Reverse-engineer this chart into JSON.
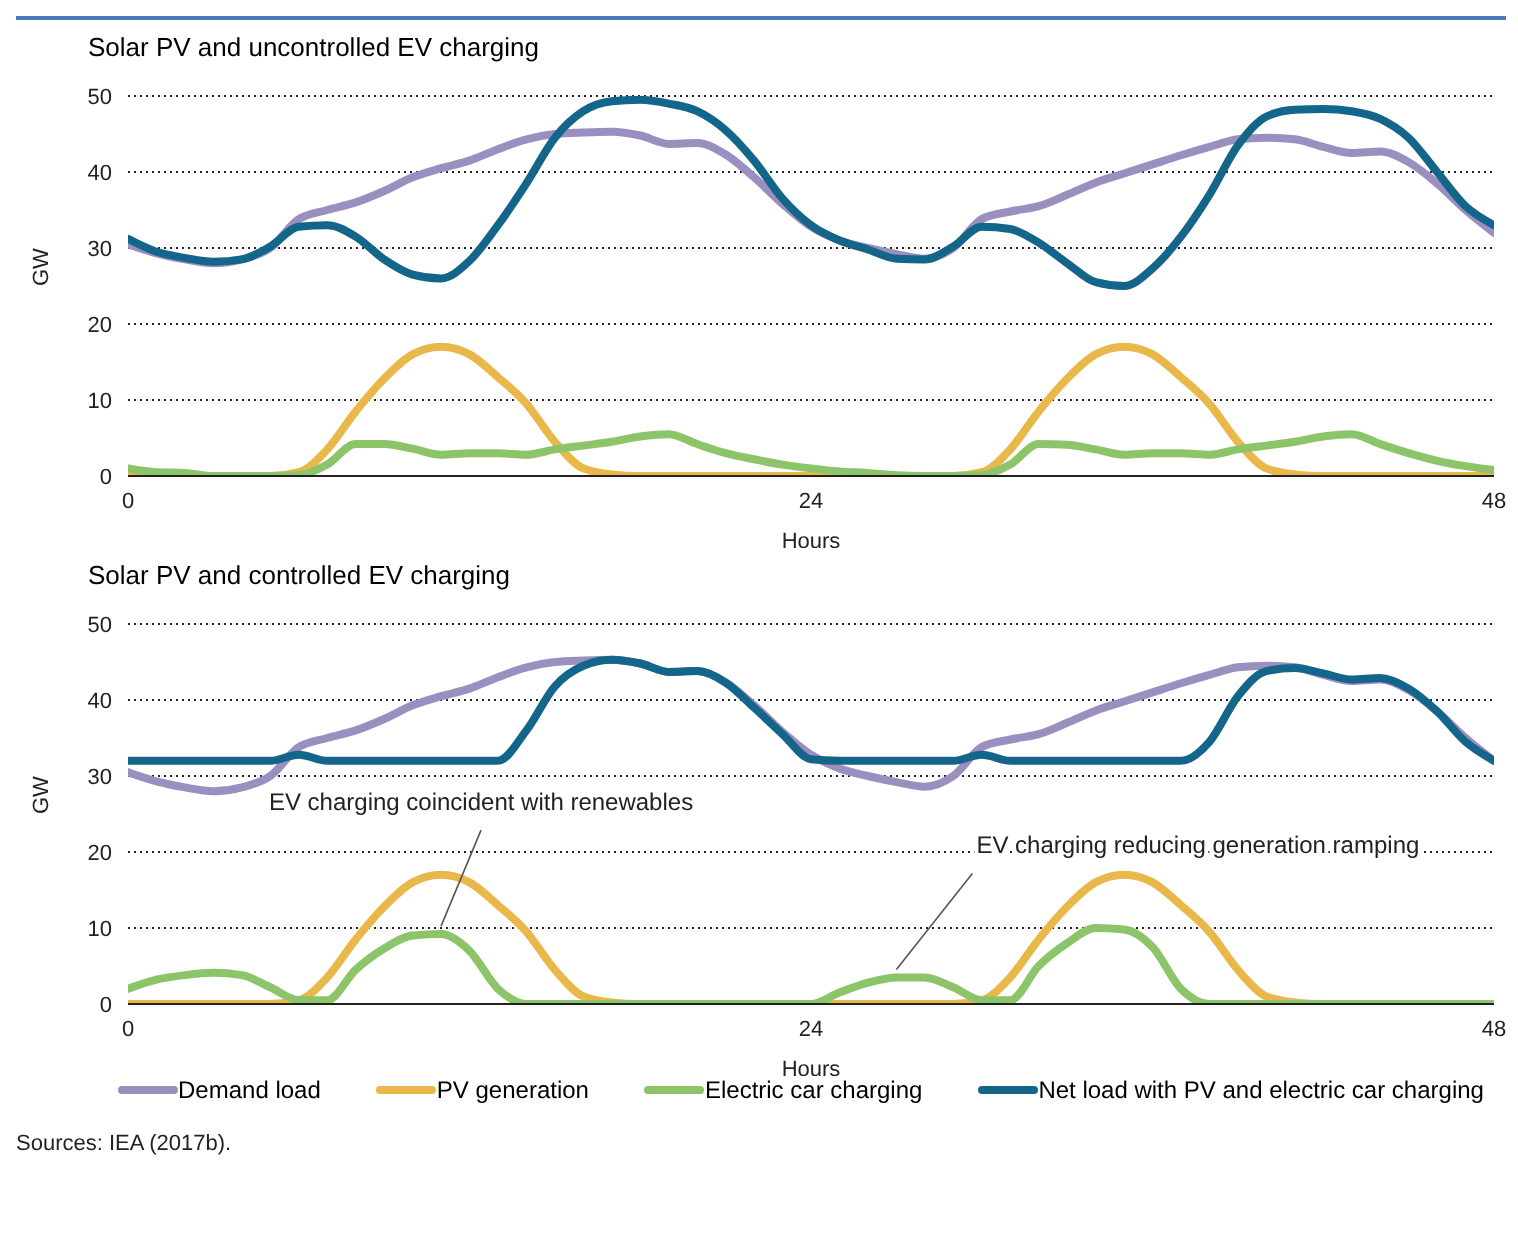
{
  "chart_data": [
    {
      "type": "line",
      "title": "Solar PV and uncontrolled EV charging",
      "xlabel": "Hours",
      "ylabel": "GW",
      "x": [
        0,
        1,
        2,
        3,
        4,
        5,
        6,
        7,
        8,
        9,
        10,
        11,
        12,
        13,
        14,
        15,
        16,
        17,
        18,
        19,
        20,
        21,
        22,
        23,
        24,
        25,
        26,
        27,
        28,
        29,
        30,
        31,
        32,
        33,
        34,
        35,
        36,
        37,
        38,
        39,
        40,
        41,
        42,
        43,
        44,
        45,
        46,
        47,
        48
      ],
      "xlim": [
        0,
        48
      ],
      "xticks": [
        0,
        24,
        48
      ],
      "ylim": [
        0,
        50
      ],
      "yticks": [
        0,
        10,
        20,
        30,
        40,
        50
      ],
      "grid": "y",
      "legend": false,
      "marker": "none",
      "line_style": "solid",
      "series": [
        {
          "color": "#9b8fc0",
          "values": [
            30.5,
            29.3,
            28.5,
            28,
            28.5,
            30,
            33.8,
            35,
            36,
            37.5,
            39.3,
            40.5,
            41.5,
            43,
            44.3,
            45,
            45.2,
            45.3,
            44.8,
            43.7,
            43.8,
            42.3,
            39.3,
            35.8,
            32.8,
            31,
            30,
            29.2,
            28.6,
            30,
            33.8,
            34.8,
            35.5,
            37,
            38.6,
            39.8,
            41,
            42.2,
            43.3,
            44.3,
            44.5,
            44.3,
            43.3,
            42.5,
            42.7,
            41.3,
            38.5,
            35,
            32
          ]
        },
        {
          "color": "#e8b84a",
          "values": [
            0,
            0,
            0,
            0,
            0,
            0,
            0.5,
            3.5,
            8.5,
            12.8,
            16,
            17,
            16,
            13,
            9.5,
            4.5,
            1,
            0.2,
            0,
            0,
            0,
            0,
            0,
            0,
            0,
            0,
            0,
            0,
            0,
            0,
            0.5,
            3.5,
            8.5,
            12.8,
            16,
            17,
            16,
            13,
            9.5,
            4.5,
            1,
            0.2,
            0,
            0,
            0,
            0,
            0,
            0,
            0
          ]
        },
        {
          "color": "#8cc46a",
          "values": [
            1,
            0.5,
            0.4,
            0,
            0,
            0,
            0.1,
            1.5,
            4.2,
            4.2,
            3.6,
            2.8,
            3,
            3,
            2.8,
            3.5,
            4,
            4.5,
            5.2,
            5.5,
            4.2,
            3,
            2.2,
            1.5,
            1,
            0.6,
            0.4,
            0.1,
            0,
            0,
            0.1,
            1.5,
            4.2,
            4.1,
            3.5,
            2.8,
            3,
            3,
            2.8,
            3.5,
            4,
            4.5,
            5.2,
            5.5,
            4.2,
            3,
            2,
            1.3,
            0.8
          ]
        },
        {
          "color": "#14658a",
          "values": [
            31.2,
            29.5,
            28.7,
            28.2,
            28.5,
            30.2,
            32.8,
            33,
            31.5,
            28.5,
            26.5,
            26,
            28.3,
            33,
            38.5,
            44.5,
            48,
            49.3,
            49.5,
            49,
            48,
            45.5,
            41.5,
            36.5,
            33,
            31,
            29.8,
            28.6,
            28.5,
            30.2,
            32.8,
            32.5,
            30.7,
            28,
            25.5,
            25,
            27.3,
            31.5,
            37,
            43.5,
            47.3,
            48.2,
            48.3,
            48,
            47,
            44.5,
            40,
            35.5,
            33
          ]
        }
      ]
    },
    {
      "type": "line",
      "title": "Solar PV and controlled EV charging",
      "xlabel": "Hours",
      "ylabel": "GW",
      "x": [
        0,
        1,
        2,
        3,
        4,
        5,
        6,
        7,
        8,
        9,
        10,
        11,
        12,
        13,
        14,
        15,
        16,
        17,
        18,
        19,
        20,
        21,
        22,
        23,
        24,
        25,
        26,
        27,
        28,
        29,
        30,
        31,
        32,
        33,
        34,
        35,
        36,
        37,
        38,
        39,
        40,
        41,
        42,
        43,
        44,
        45,
        46,
        47,
        48
      ],
      "xlim": [
        0,
        48
      ],
      "xticks": [
        0,
        24,
        48
      ],
      "ylim": [
        0,
        50
      ],
      "yticks": [
        0,
        10,
        20,
        30,
        40,
        50
      ],
      "grid": "y",
      "legend": "bottom",
      "marker": "none",
      "line_style": "solid",
      "annotations": [
        {
          "text": "EV charging coincident with renewables",
          "x": 11,
          "y": 9.2
        },
        {
          "text": "EV charging reducing generation ramping",
          "x": 27,
          "y": 3.5
        },
        "Sources: IEA (2017b)."
      ],
      "series": [
        {
          "name": "Demand load",
          "color": "#9b8fc0",
          "values": [
            30.5,
            29.3,
            28.5,
            28,
            28.5,
            30,
            33.8,
            35,
            36,
            37.5,
            39.3,
            40.5,
            41.5,
            43,
            44.3,
            45,
            45.2,
            45.3,
            44.8,
            43.7,
            43.8,
            42.3,
            39.3,
            35.8,
            32.8,
            31,
            30,
            29.2,
            28.6,
            30,
            33.8,
            34.8,
            35.5,
            37,
            38.6,
            39.8,
            41,
            42.2,
            43.3,
            44.3,
            44.5,
            44.3,
            43.3,
            42.5,
            42.7,
            41.3,
            38.5,
            35,
            32
          ]
        },
        {
          "name": "PV generation",
          "color": "#e8b84a",
          "values": [
            0,
            0,
            0,
            0,
            0,
            0,
            0.5,
            3.5,
            8.5,
            12.8,
            16,
            17,
            16,
            13,
            9.5,
            4.5,
            1,
            0.2,
            0,
            0,
            0,
            0,
            0,
            0,
            0,
            0,
            0,
            0,
            0,
            0,
            0.5,
            3.5,
            8.5,
            12.8,
            16,
            17,
            16,
            13,
            9.5,
            4.5,
            1,
            0.2,
            0,
            0,
            null,
            null,
            null,
            null,
            null
          ]
        },
        {
          "name": "Electric car charging",
          "color": "#8cc46a",
          "values": [
            2,
            3.2,
            3.8,
            4.1,
            3.8,
            2.2,
            0.5,
            0.5,
            4.5,
            7.3,
            9,
            9.2,
            7,
            2,
            0,
            0,
            0,
            0,
            0,
            0,
            0,
            0,
            0,
            0,
            0,
            1.5,
            2.8,
            3.5,
            3.5,
            2.2,
            0.5,
            0.5,
            5,
            8,
            10,
            9.8,
            7.5,
            2,
            0,
            0,
            0,
            0,
            0,
            0,
            0,
            0,
            0,
            0,
            0
          ]
        },
        {
          "name": "Net load with PV and electric car charging",
          "color": "#14658a",
          "values": [
            32,
            32,
            32,
            32,
            32,
            32,
            32.8,
            32,
            32,
            32,
            32,
            32,
            32,
            32,
            36,
            41.8,
            44.5,
            45.3,
            44.8,
            43.7,
            43.8,
            42.3,
            39,
            35.5,
            32.2,
            32,
            32,
            32,
            32,
            32,
            32.8,
            32,
            32,
            32,
            32,
            32,
            32,
            32,
            34.5,
            40.5,
            43.8,
            44.2,
            43.5,
            42.7,
            42.9,
            41.5,
            38.5,
            34.5,
            32
          ]
        }
      ]
    }
  ]
}
